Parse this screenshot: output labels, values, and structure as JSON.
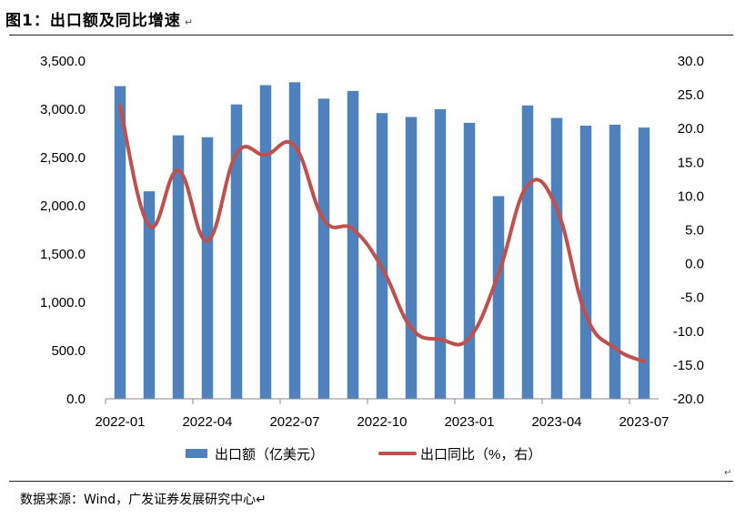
{
  "title": "图1：出口额及同比增速",
  "title_mark": "↵",
  "source": "数据来源：Wind，广发证券发展研究中心↵",
  "end_mark": "↵",
  "colors": {
    "bar": "#4f81bd",
    "line": "#c0504d",
    "axis": "#888888"
  },
  "chart_data": {
    "type": "bar",
    "categories": [
      "2022-01",
      "2022-02",
      "2022-03",
      "2022-04",
      "2022-05",
      "2022-06",
      "2022-07",
      "2022-08",
      "2022-09",
      "2022-10",
      "2022-11",
      "2022-12",
      "2023-01",
      "2023-02",
      "2023-03",
      "2023-04",
      "2023-05",
      "2023-06",
      "2023-07"
    ],
    "x_tick_labels": [
      "2022-01",
      "2022-04",
      "2022-07",
      "2022-10",
      "2023-01",
      "2023-04",
      "2023-07"
    ],
    "series": [
      {
        "name": "出口额（亿美元）",
        "type": "bar",
        "axis": "left",
        "values": [
          3240,
          2150,
          2730,
          2710,
          3050,
          3250,
          3280,
          3110,
          3190,
          2960,
          2920,
          3000,
          2860,
          2100,
          3040,
          2910,
          2830,
          2840,
          2810
        ]
      },
      {
        "name": "出口同比（%，右）",
        "type": "line",
        "axis": "right",
        "values": [
          23.3,
          5.6,
          13.8,
          3.4,
          16.3,
          16.1,
          17.4,
          6.5,
          5.1,
          -0.6,
          -9.5,
          -11.2,
          -11.0,
          -1.5,
          11.6,
          8.2,
          -7.6,
          -12.5,
          -14.5
        ]
      }
    ],
    "left_axis": {
      "min": 0,
      "max": 3500,
      "ticks": [
        "0.0",
        "500.0",
        "1,000.0",
        "1,500.0",
        "2,000.0",
        "2,500.0",
        "3,000.0",
        "3,500.0"
      ]
    },
    "right_axis": {
      "min": -20,
      "max": 30,
      "ticks": [
        "-20.0",
        "-15.0",
        "-10.0",
        "-5.0",
        "0.0",
        "5.0",
        "10.0",
        "15.0",
        "20.0",
        "25.0",
        "30.0"
      ]
    },
    "legend": {
      "position": "bottom",
      "entries": [
        "出口额（亿美元）",
        "出口同比（%，右）"
      ]
    },
    "grid": false
  }
}
